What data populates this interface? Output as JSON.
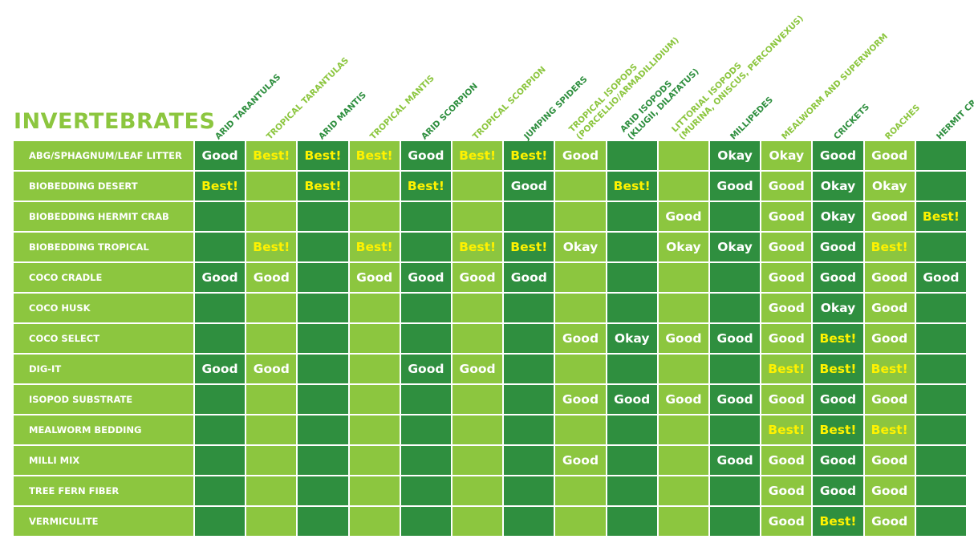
{
  "chart_data": {
    "type": "table",
    "title": "INVERTEBRATES",
    "columns": [
      [
        "ARID TARANTULAS"
      ],
      [
        "TROPICAL TARANTULAS"
      ],
      [
        "ARID MANTIS"
      ],
      [
        "TROPICAL MANTIS"
      ],
      [
        "ARID SCORPION"
      ],
      [
        "TROPICAL SCORPION"
      ],
      [
        "JUMPING SPIDERS"
      ],
      [
        "TROPICAL ISOPODS",
        "(PORCELLIO/ARMADILLIDIUM)"
      ],
      [
        "ARID ISOPODS",
        "(KLUGII, DILATATUS)"
      ],
      [
        "LITTORIAL ISOPODS",
        "(MURINA, ONISCUS, PERCONVEXUS)"
      ],
      [
        "MILLIPEDES"
      ],
      [
        "MEALWORM AND SUPERWORM"
      ],
      [
        "CRICKETS"
      ],
      [
        "ROACHES"
      ],
      [
        "HERMIT CRABS"
      ]
    ],
    "rows": [
      {
        "label": "ABG/SPHAGNUM/LEAF LITTER",
        "values": [
          "Good",
          "Best!",
          "Best!",
          "Best!",
          "Good",
          "Best!",
          "Best!",
          "Good",
          "",
          "",
          "Okay",
          "Okay",
          "Good",
          "Good",
          ""
        ]
      },
      {
        "label": "BIOBEDDING DESERT",
        "values": [
          "Best!",
          "",
          "Best!",
          "",
          "Best!",
          "",
          "Good",
          "",
          "Best!",
          "",
          "Good",
          "Good",
          "Okay",
          "Okay",
          ""
        ]
      },
      {
        "label": "BIOBEDDING HERMIT CRAB",
        "values": [
          "",
          "",
          "",
          "",
          "",
          "",
          "",
          "",
          "",
          "Good",
          "",
          "Good",
          "Okay",
          "Good",
          "Best!"
        ]
      },
      {
        "label": "BIOBEDDING TROPICAL",
        "values": [
          "",
          "Best!",
          "",
          "Best!",
          "",
          "Best!",
          "Best!",
          "Okay",
          "",
          "Okay",
          "Okay",
          "Good",
          "Good",
          "Best!",
          ""
        ]
      },
      {
        "label": "COCO CRADLE",
        "values": [
          "Good",
          "Good",
          "",
          "Good",
          "Good",
          "Good",
          "Good",
          "",
          "",
          "",
          "",
          "Good",
          "Good",
          "Good",
          "Good"
        ]
      },
      {
        "label": "COCO HUSK",
        "values": [
          "",
          "",
          "",
          "",
          "",
          "",
          "",
          "",
          "",
          "",
          "",
          "Good",
          "Okay",
          "Good",
          ""
        ]
      },
      {
        "label": "COCO SELECT",
        "values": [
          "",
          "",
          "",
          "",
          "",
          "",
          "",
          "Good",
          "Okay",
          "Good",
          "Good",
          "Good",
          "Best!",
          "Good",
          ""
        ]
      },
      {
        "label": "DIG-IT",
        "values": [
          "Good",
          "Good",
          "",
          "",
          "Good",
          "Good",
          "",
          "",
          "",
          "",
          "",
          "Best!",
          "Best!",
          "Best!",
          ""
        ]
      },
      {
        "label": "ISOPOD SUBSTRATE",
        "values": [
          "",
          "",
          "",
          "",
          "",
          "",
          "",
          "Good",
          "Good",
          "Good",
          "Good",
          "Good",
          "Good",
          "Good",
          ""
        ]
      },
      {
        "label": "MEALWORM BEDDING",
        "values": [
          "",
          "",
          "",
          "",
          "",
          "",
          "",
          "",
          "",
          "",
          "",
          "Best!",
          "Best!",
          "Best!",
          ""
        ]
      },
      {
        "label": "MILLI MIX",
        "values": [
          "",
          "",
          "",
          "",
          "",
          "",
          "",
          "Good",
          "",
          "",
          "Good",
          "Good",
          "Good",
          "Good",
          ""
        ]
      },
      {
        "label": "TREE FERN FIBER",
        "values": [
          "",
          "",
          "",
          "",
          "",
          "",
          "",
          "",
          "",
          "",
          "",
          "Good",
          "Good",
          "Good",
          ""
        ]
      },
      {
        "label": "VERMICULITE",
        "values": [
          "",
          "",
          "",
          "",
          "",
          "",
          "",
          "",
          "",
          "",
          "",
          "Good",
          "Best!",
          "Good",
          ""
        ]
      }
    ],
    "colors": {
      "light_green": "#8cc63f",
      "dark_green": "#2f8f3f",
      "best_text": "#fff200",
      "good_text": "#ffffff",
      "okay_text": "#ffffff",
      "header_dark": "#2f8f3f",
      "header_light": "#8cc63f"
    }
  }
}
